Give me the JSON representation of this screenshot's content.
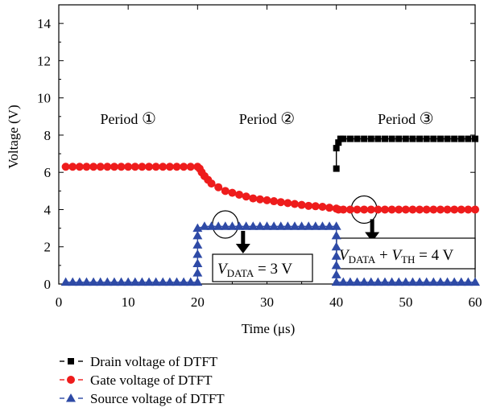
{
  "chart_data": {
    "type": "line",
    "xlabel": "Time (μs)",
    "ylabel": "Voltage (V)",
    "xlim": [
      0,
      60
    ],
    "ylim": [
      0,
      15
    ],
    "x_ticks": [
      "0",
      "10",
      "20",
      "30",
      "40",
      "50",
      "60"
    ],
    "y_ticks": [
      "0",
      "2",
      "4",
      "6",
      "8",
      "10",
      "12",
      "14"
    ],
    "grid": false,
    "legend_placement": "bottom-left, below plot",
    "series": [
      {
        "name": "Drain voltage of DTFT",
        "color": "#000000",
        "marker": "square",
        "x": [
          40,
          40,
          40.3,
          40.6,
          41,
          42,
          43,
          44,
          45,
          46,
          47,
          48,
          49,
          50,
          51,
          52,
          53,
          54,
          55,
          56,
          57,
          58,
          59,
          60
        ],
        "y": [
          6.2,
          7.3,
          7.6,
          7.8,
          7.8,
          7.8,
          7.8,
          7.8,
          7.8,
          7.8,
          7.8,
          7.8,
          7.8,
          7.8,
          7.8,
          7.8,
          7.8,
          7.8,
          7.8,
          7.8,
          7.8,
          7.8,
          7.8,
          7.8
        ]
      },
      {
        "name": "Gate voltage of DTFT",
        "color": "#ee1c1c",
        "marker": "circle",
        "x": [
          1,
          2,
          3,
          4,
          5,
          6,
          7,
          8,
          9,
          10,
          11,
          12,
          13,
          14,
          15,
          16,
          17,
          18,
          19,
          20,
          20.3,
          20.6,
          21,
          21.5,
          22,
          23,
          24,
          25,
          26,
          27,
          28,
          29,
          30,
          31,
          32,
          33,
          34,
          35,
          36,
          37,
          38,
          39,
          40,
          40.3,
          41,
          42,
          43,
          44,
          45,
          46,
          47,
          48,
          49,
          50,
          51,
          52,
          53,
          54,
          55,
          56,
          57,
          58,
          59,
          60
        ],
        "y": [
          6.3,
          6.3,
          6.3,
          6.3,
          6.3,
          6.3,
          6.3,
          6.3,
          6.3,
          6.3,
          6.3,
          6.3,
          6.3,
          6.3,
          6.3,
          6.3,
          6.3,
          6.3,
          6.3,
          6.3,
          6.2,
          6.0,
          5.8,
          5.6,
          5.4,
          5.2,
          5.0,
          4.9,
          4.8,
          4.7,
          4.6,
          4.55,
          4.5,
          4.45,
          4.4,
          4.35,
          4.3,
          4.25,
          4.2,
          4.18,
          4.15,
          4.1,
          4.05,
          4.0,
          4.0,
          4.0,
          4.0,
          4.0,
          4.0,
          4.0,
          4.0,
          4.0,
          4.0,
          4.0,
          4.0,
          4.0,
          4.0,
          4.0,
          4.0,
          4.0,
          4.0,
          4.0,
          4.0,
          4.0
        ]
      },
      {
        "name": "Source voltage of DTFT",
        "color": "#2e4aa6",
        "marker": "triangle",
        "x": [
          1,
          2,
          3,
          4,
          5,
          6,
          7,
          8,
          9,
          10,
          11,
          12,
          13,
          14,
          15,
          16,
          17,
          18,
          19,
          20,
          20,
          20,
          20,
          20,
          20,
          20,
          21,
          22,
          23,
          24,
          25,
          26,
          27,
          28,
          29,
          30,
          31,
          32,
          33,
          34,
          35,
          36,
          37,
          38,
          39,
          40,
          40,
          40,
          40,
          40,
          40,
          40,
          41,
          42,
          43,
          44,
          45,
          46,
          47,
          48,
          49,
          50,
          51,
          52,
          53,
          54,
          55,
          56,
          57,
          58,
          59,
          60
        ],
        "y": [
          0.1,
          0.1,
          0.1,
          0.1,
          0.1,
          0.1,
          0.1,
          0.1,
          0.1,
          0.1,
          0.1,
          0.1,
          0.1,
          0.1,
          0.1,
          0.1,
          0.1,
          0.1,
          0.1,
          0.1,
          0.6,
          1.1,
          1.6,
          2.1,
          2.6,
          3.0,
          3.1,
          3.1,
          3.1,
          3.1,
          3.1,
          3.1,
          3.1,
          3.1,
          3.1,
          3.1,
          3.1,
          3.1,
          3.1,
          3.1,
          3.1,
          3.1,
          3.1,
          3.1,
          3.1,
          3.1,
          2.6,
          2.0,
          1.5,
          1.0,
          0.5,
          0.1,
          0.1,
          0.1,
          0.1,
          0.1,
          0.1,
          0.1,
          0.1,
          0.1,
          0.1,
          0.1,
          0.1,
          0.1,
          0.1,
          0.1,
          0.1,
          0.1,
          0.1,
          0.1,
          0.1,
          0.1
        ]
      }
    ],
    "annotations": {
      "periods": [
        {
          "label": "Period",
          "symbol": "①",
          "x": 10,
          "y": 8.6
        },
        {
          "label": "Period",
          "symbol": "②",
          "x": 30,
          "y": 8.6
        },
        {
          "label": "Period",
          "symbol": "③",
          "x": 50,
          "y": 8.6
        }
      ],
      "vdata_box": {
        "v": "V",
        "sub": "DATA",
        "rest": " = 3 V"
      },
      "vdata_vth_box": {
        "v1": "V",
        "sub1": "DATA",
        "plus": " + ",
        "v2": "V",
        "sub2": "TH",
        "rest": " = 4 V"
      },
      "ellipse_1": {
        "x": 24,
        "y": 3.2
      },
      "ellipse_2": {
        "x": 44,
        "y": 4.0
      }
    }
  }
}
